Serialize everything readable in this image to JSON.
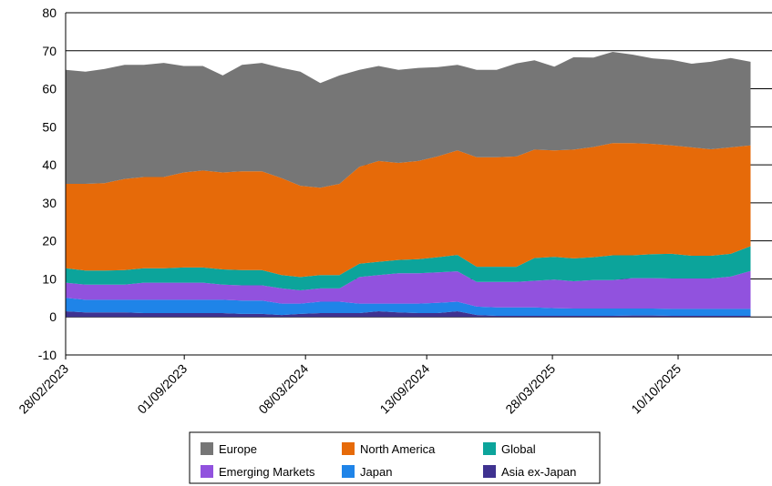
{
  "chart_data": {
    "type": "area",
    "stacked": true,
    "title": "",
    "xlabel": "",
    "ylabel": "",
    "ylim": [
      -10,
      80
    ],
    "yticks": [
      -10,
      0,
      10,
      20,
      30,
      40,
      50,
      60,
      70,
      80
    ],
    "grid": "horizontal",
    "legend_position": "bottom",
    "x_tick_labels": [
      "28/02/2023",
      "01/09/2023",
      "08/03/2024",
      "13/09/2024",
      "28/03/2025",
      "10/10/2025"
    ],
    "x": [
      "2023-02-28",
      "2023-03-31",
      "2023-04-30",
      "2023-05-31",
      "2023-06-30",
      "2023-07-31",
      "2023-08-31",
      "2023-09-30",
      "2023-10-31",
      "2023-11-30",
      "2023-12-31",
      "2024-01-31",
      "2024-02-29",
      "2024-03-31",
      "2024-04-30",
      "2024-05-31",
      "2024-06-30",
      "2024-07-31",
      "2024-08-31",
      "2024-09-30",
      "2024-10-31",
      "2024-11-30",
      "2024-12-31",
      "2025-01-31",
      "2025-02-28",
      "2025-03-31",
      "2025-04-30",
      "2025-05-31",
      "2025-06-30",
      "2025-07-31",
      "2025-08-31",
      "2025-09-30",
      "2025-10-31",
      "2025-11-30",
      "2025-12-31",
      "2026-01-31"
    ],
    "series": [
      {
        "name": "Asia ex-Japan",
        "color": "#3f3290",
        "values": [
          1.5,
          1.2,
          1.2,
          1.2,
          1.0,
          1.0,
          1.0,
          1.0,
          1.0,
          0.8,
          0.8,
          0.5,
          0.8,
          1.0,
          1.0,
          1.0,
          1.5,
          1.2,
          1.0,
          1.0,
          1.5,
          0.5,
          0.3,
          0.3,
          0.3,
          0.3,
          0.3,
          0.3,
          0.3,
          0.4,
          0.4,
          0.3,
          0.3,
          0.3,
          0.3,
          0.3
        ]
      },
      {
        "name": "Japan",
        "color": "#1f84e8",
        "values": [
          3.5,
          3.3,
          3.3,
          3.3,
          3.5,
          3.5,
          3.5,
          3.5,
          3.5,
          3.5,
          3.5,
          3.0,
          2.7,
          3.0,
          3.0,
          2.5,
          2.0,
          2.3,
          2.5,
          2.7,
          2.5,
          2.2,
          2.2,
          2.2,
          2.2,
          2.0,
          1.9,
          1.9,
          1.9,
          1.8,
          1.8,
          1.8,
          1.8,
          1.8,
          1.8,
          1.8
        ]
      },
      {
        "name": "Emerging Markets",
        "color": "#9152de",
        "values": [
          4.0,
          4.0,
          4.0,
          4.0,
          4.5,
          4.5,
          4.5,
          4.5,
          4.0,
          4.0,
          4.0,
          4.0,
          3.5,
          3.5,
          3.5,
          7.0,
          7.5,
          8.0,
          8.0,
          8.0,
          8.0,
          6.5,
          6.7,
          6.7,
          7.0,
          7.5,
          7.2,
          7.5,
          7.5,
          8.0,
          8.0,
          8.0,
          8.0,
          8.0,
          8.5,
          10.0
        ]
      },
      {
        "name": "Global",
        "color": "#0ca49b",
        "values": [
          3.8,
          3.7,
          3.7,
          3.8,
          3.8,
          3.8,
          4.0,
          4.0,
          4.0,
          4.0,
          4.0,
          3.5,
          3.5,
          3.5,
          3.5,
          3.5,
          3.5,
          3.5,
          3.7,
          4.0,
          4.3,
          4.0,
          4.0,
          4.0,
          6.0,
          6.0,
          6.0,
          6.0,
          6.5,
          6.0,
          6.3,
          6.5,
          6.0,
          6.0,
          6.0,
          6.5
        ]
      },
      {
        "name": "North America",
        "color": "#e66a09",
        "values": [
          22.2,
          22.8,
          23.0,
          24.0,
          24.0,
          24.0,
          25.0,
          25.5,
          25.5,
          26.0,
          26.0,
          25.5,
          24.0,
          23.0,
          24.0,
          25.5,
          26.5,
          25.5,
          25.8,
          26.5,
          27.5,
          28.8,
          28.8,
          29.0,
          28.5,
          28.0,
          28.6,
          29.0,
          29.5,
          29.5,
          29.0,
          28.5,
          28.5,
          28.0,
          28.0,
          26.5
        ]
      },
      {
        "name": "Europe",
        "color": "#767676",
        "values": [
          30.0,
          29.5,
          30.0,
          30.0,
          29.5,
          30.0,
          28.0,
          27.5,
          25.5,
          28.0,
          28.5,
          29.0,
          30.0,
          27.5,
          28.5,
          25.5,
          25.0,
          24.5,
          24.5,
          23.5,
          22.5,
          23.0,
          23.0,
          24.5,
          23.5,
          22.0,
          24.3,
          23.5,
          24.0,
          23.3,
          22.5,
          22.5,
          22.0,
          23.0,
          23.5,
          22.0
        ]
      }
    ],
    "legend_order": [
      "Europe",
      "North America",
      "Global",
      "Emerging Markets",
      "Japan",
      "Asia ex-Japan"
    ]
  }
}
